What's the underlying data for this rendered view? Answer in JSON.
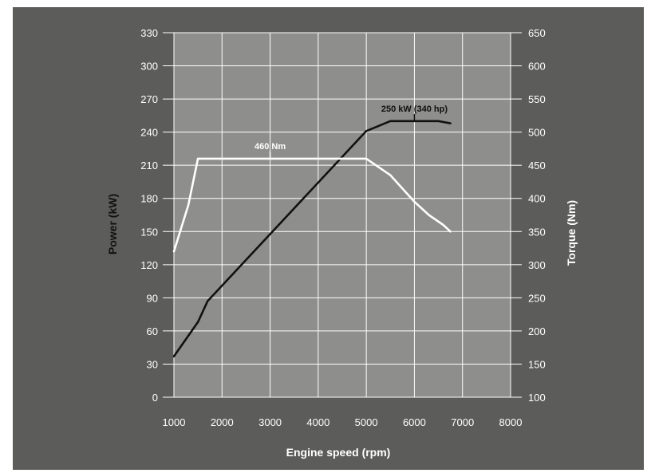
{
  "chart_data": {
    "type": "line",
    "title": "",
    "xlabel": "Engine speed (rpm)",
    "ylabel_left": "Power (kW)",
    "ylabel_right": "Torque (Nm)",
    "xlim": [
      1000,
      8000
    ],
    "ylim_left": [
      0,
      330
    ],
    "ylim_right": [
      100,
      650
    ],
    "x_ticks": [
      "1000",
      "2000",
      "3000",
      "4000",
      "5000",
      "6000",
      "7000",
      "8000"
    ],
    "y_left_ticks": [
      "0",
      "30",
      "60",
      "90",
      "120",
      "150",
      "180",
      "210",
      "240",
      "270",
      "300",
      "330"
    ],
    "y_right_ticks": [
      "100",
      "150",
      "200",
      "250",
      "300",
      "350",
      "400",
      "450",
      "500",
      "550",
      "600",
      "650"
    ],
    "grid": true,
    "series": [
      {
        "axis": "left",
        "color": "#111111",
        "x": [
          1000,
          1500,
          1700,
          5000,
          5500,
          6500,
          6750
        ],
        "y": [
          37,
          68,
          87,
          241,
          250,
          250,
          248
        ]
      },
      {
        "axis": "right",
        "color": "#ffffff",
        "x": [
          1000,
          1300,
          1500,
          5000,
          5500,
          6000,
          6300,
          6600,
          6750
        ],
        "y": [
          320,
          390,
          460,
          460,
          435,
          395,
          375,
          360,
          350
        ]
      }
    ],
    "annotations": [
      {
        "text": "250 kW (340 hp)",
        "series": 0,
        "x": 6000,
        "y": 250,
        "color": "#111111"
      },
      {
        "text": "460 Nm",
        "series": 1,
        "x": 3000,
        "y": 460,
        "color": "#ffffff"
      }
    ]
  }
}
